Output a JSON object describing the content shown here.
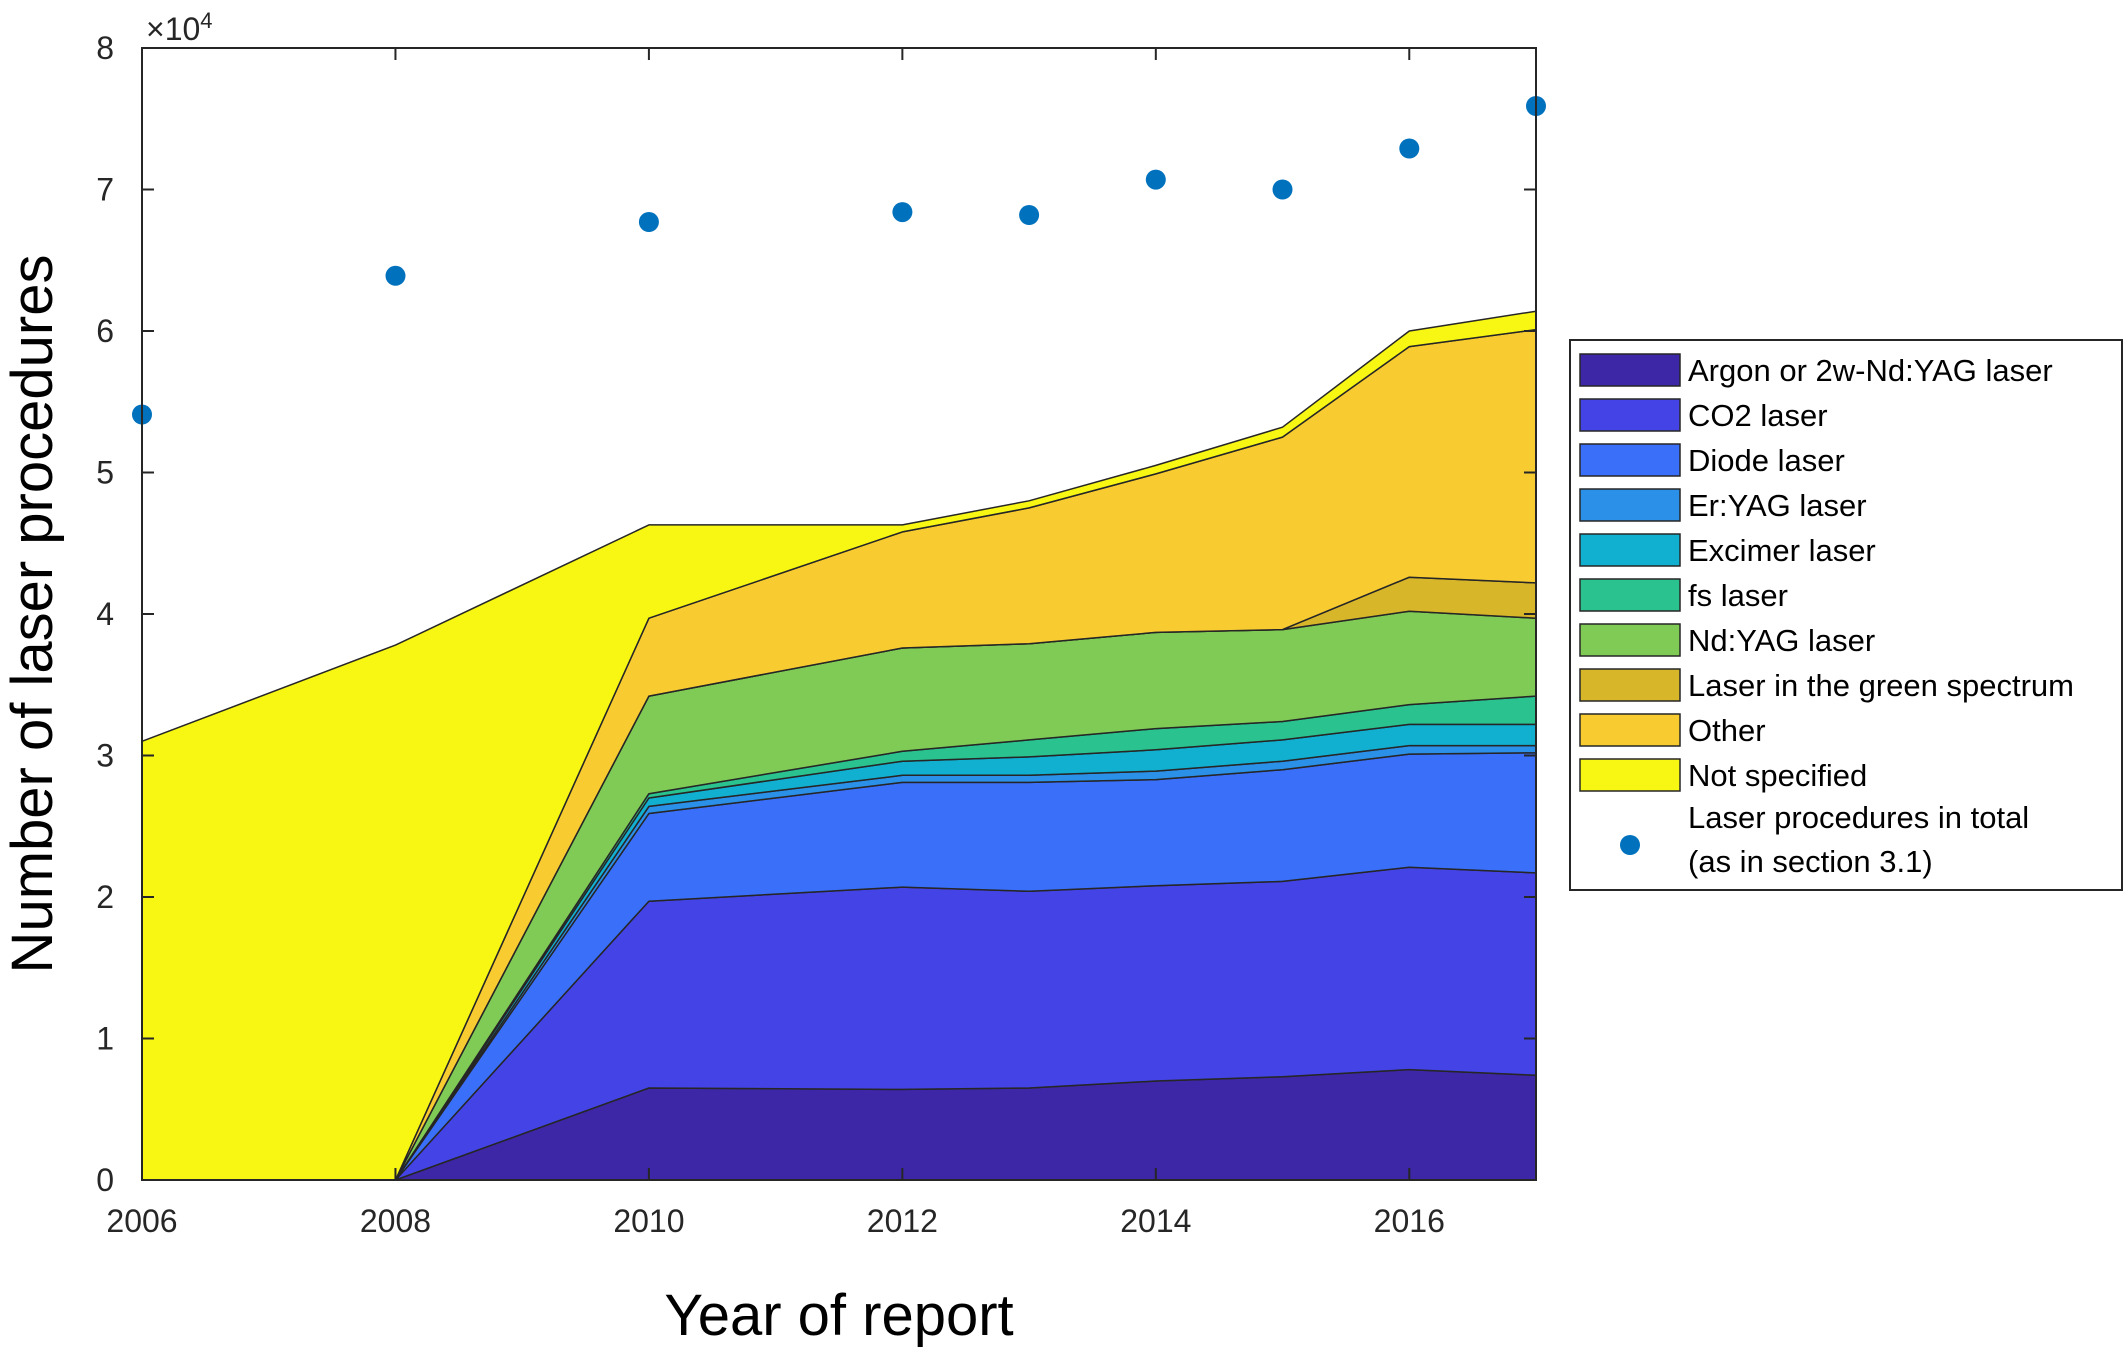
{
  "chart_data": {
    "type": "area",
    "xlabel": "Year of report",
    "ylabel": "Number of laser procedures",
    "exponent_label": "×10",
    "exponent_power": "4",
    "xlim": [
      2006,
      2017
    ],
    "ylim": [
      0,
      80000
    ],
    "x_ticks": [
      "2006",
      "2008",
      "2010",
      "2012",
      "2014",
      "2016"
    ],
    "y_ticks": [
      "0",
      "1",
      "2",
      "3",
      "4",
      "5",
      "6",
      "7",
      "8"
    ],
    "x": [
      2006,
      2008,
      2010,
      2012,
      2013,
      2014,
      2015,
      2016,
      2017
    ],
    "stacked": true,
    "grid": false,
    "legend_position": "right",
    "series": [
      {
        "name": "Argon or 2w-Nd:YAG laser",
        "color": "#3d27a6",
        "values": [
          0,
          0,
          6500,
          6400,
          6500,
          7000,
          7300,
          7800,
          7400
        ]
      },
      {
        "name": "CO2 laser",
        "color": "#4444e6",
        "values": [
          0,
          0,
          13200,
          14300,
          13900,
          13800,
          13800,
          14300,
          14300
        ]
      },
      {
        "name": "Diode laser",
        "color": "#3a6ff9",
        "values": [
          0,
          0,
          6200,
          7400,
          7700,
          7500,
          7900,
          8000,
          8500
        ]
      },
      {
        "name": "Er:YAG laser",
        "color": "#2b90e8",
        "values": [
          0,
          0,
          500,
          500,
          500,
          600,
          600,
          600,
          500
        ]
      },
      {
        "name": "Excimer laser",
        "color": "#11b0d0",
        "values": [
          0,
          0,
          600,
          1000,
          1300,
          1500,
          1500,
          1500,
          1500
        ]
      },
      {
        "name": "fs laser",
        "color": "#2ac28e",
        "values": [
          0,
          0,
          300,
          700,
          1200,
          1500,
          1300,
          1400,
          2000
        ]
      },
      {
        "name": "Nd:YAG laser",
        "color": "#7fcb56",
        "values": [
          0,
          0,
          6900,
          7300,
          6800,
          6800,
          6500,
          6600,
          5500
        ]
      },
      {
        "name": "Laser in the green spectrum",
        "color": "#d8b62a",
        "values": [
          0,
          0,
          0,
          0,
          0,
          0,
          0,
          2400,
          2500
        ]
      },
      {
        "name": "Other",
        "color": "#f8cc31",
        "values": [
          0,
          0,
          5500,
          8200,
          9600,
          11200,
          13600,
          16300,
          17900
        ]
      },
      {
        "name": "Not specified",
        "color": "#f7f713",
        "values": [
          31000,
          37800,
          6600,
          500,
          500,
          600,
          700,
          1100,
          1300
        ]
      }
    ],
    "scatter": {
      "name": "Laser procedures in total\n(as in section 3.1)",
      "name_lines": [
        "Laser procedures in total",
        "(as in section 3.1)"
      ],
      "color": "#0072bd",
      "x": [
        2006,
        2008,
        2010,
        2012,
        2013,
        2014,
        2015,
        2016,
        2017
      ],
      "y": [
        54100,
        63900,
        67700,
        68400,
        68200,
        70700,
        70000,
        72900,
        75900
      ]
    }
  }
}
